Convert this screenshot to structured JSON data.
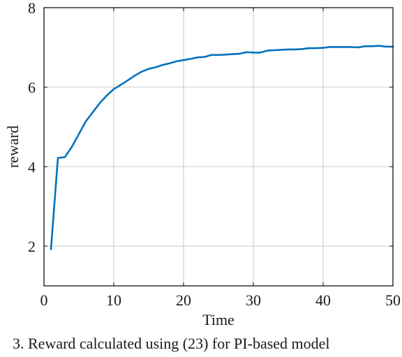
{
  "chart_data": {
    "type": "line",
    "title": "",
    "xlabel": "Time",
    "ylabel": "reward",
    "xlim": [
      0,
      50
    ],
    "ylim": [
      1,
      8
    ],
    "xticks": [
      0,
      10,
      20,
      30,
      40,
      50
    ],
    "yticks": [
      2,
      4,
      6,
      8
    ],
    "grid": true,
    "colors": {
      "line": "#0072bd",
      "grid": "#c8c8c8",
      "axis": "#000000"
    },
    "series": [
      {
        "x": [
          1,
          2,
          3,
          4,
          5,
          6,
          7,
          8,
          9,
          10,
          11,
          12,
          13,
          14,
          15,
          16,
          17,
          18,
          19,
          20,
          21,
          22,
          23,
          24,
          25,
          26,
          27,
          28,
          29,
          30,
          31,
          32,
          33,
          34,
          35,
          36,
          37,
          38,
          39,
          40,
          41,
          42,
          43,
          44,
          45,
          46,
          47,
          48,
          49,
          50
        ],
        "y": [
          1.92,
          4.22,
          4.24,
          4.5,
          4.82,
          5.14,
          5.37,
          5.6,
          5.79,
          5.95,
          6.06,
          6.17,
          6.29,
          6.39,
          6.46,
          6.5,
          6.56,
          6.6,
          6.65,
          6.68,
          6.71,
          6.75,
          6.76,
          6.81,
          6.81,
          6.82,
          6.83,
          6.84,
          6.88,
          6.87,
          6.87,
          6.92,
          6.93,
          6.94,
          6.95,
          6.95,
          6.96,
          6.98,
          6.98,
          6.99,
          7.01,
          7.01,
          7.01,
          7.01,
          7.0,
          7.03,
          7.03,
          7.04,
          7.02,
          7.02
        ]
      }
    ]
  },
  "caption": "3. Reward calculated using (23) for PI-based model"
}
